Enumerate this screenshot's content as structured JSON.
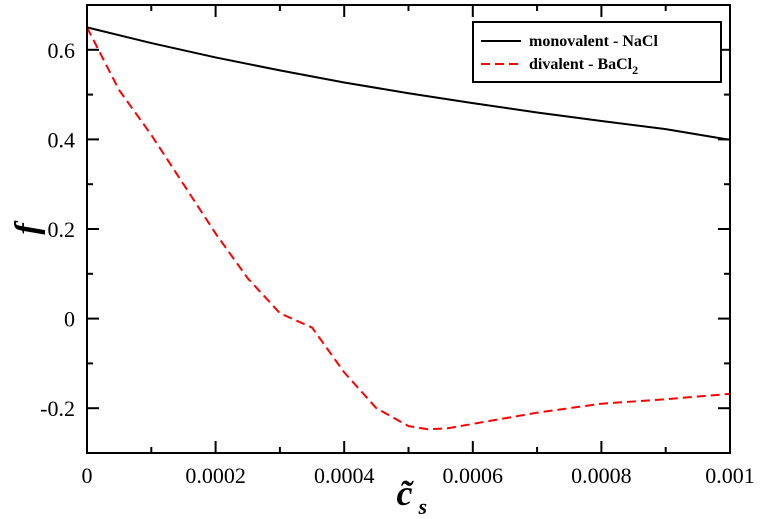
{
  "chart_data": {
    "type": "line",
    "xlabel": "c̃",
    "xlabel_subscript": "s",
    "ylabel": "f",
    "xlim": [
      0,
      0.001
    ],
    "ylim": [
      -0.3,
      0.7
    ],
    "x_ticks": [
      0,
      0.0002,
      0.0004,
      0.0006,
      0.0008,
      0.001
    ],
    "x_tick_labels": [
      "0",
      "0.0002",
      "0.0004",
      "0.0006",
      "0.0008",
      "0.001"
    ],
    "y_ticks": [
      -0.2,
      0,
      0.2,
      0.4,
      0.6
    ],
    "y_tick_labels": [
      "-0.2",
      "0",
      "0.2",
      "0.4",
      "0.6"
    ],
    "grid": false,
    "legend_position": "top-right",
    "series": [
      {
        "name": "monovalent  - NaCl",
        "color": "#000000",
        "dash": "solid",
        "x": [
          0,
          0.0001,
          0.0002,
          0.0003,
          0.0004,
          0.0005,
          0.0006,
          0.0007,
          0.0008,
          0.0009,
          0.001
        ],
        "y": [
          0.65,
          0.615,
          0.583,
          0.554,
          0.527,
          0.503,
          0.481,
          0.46,
          0.441,
          0.423,
          0.399
        ]
      },
      {
        "name_main": "divalent - BaCl",
        "name_sub": "2",
        "color": "#ff0000",
        "dash": "dashed",
        "x": [
          0,
          5e-05,
          0.0001,
          0.00015,
          0.0002,
          0.00025,
          0.0003,
          0.00035,
          0.0004,
          0.00045,
          0.0005,
          0.00053,
          0.00056,
          0.0006,
          0.0007,
          0.0008,
          0.0009,
          0.001
        ],
        "y": [
          0.65,
          0.51,
          0.41,
          0.3,
          0.19,
          0.09,
          0.012,
          -0.02,
          -0.12,
          -0.2,
          -0.24,
          -0.247,
          -0.245,
          -0.235,
          -0.21,
          -0.19,
          -0.18,
          -0.168
        ]
      }
    ]
  }
}
